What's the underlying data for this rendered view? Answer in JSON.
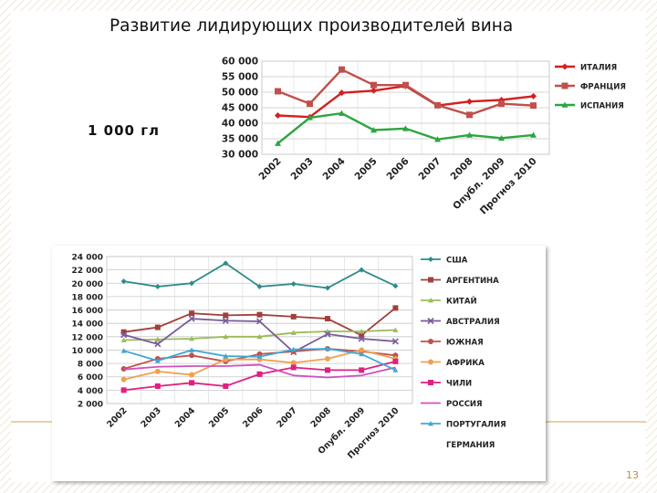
{
  "slide": {
    "title": "Развитие лидирующих производителей вина",
    "unit_label": "1 000 гл",
    "page_number": "13",
    "accent_color": "#d4a04c"
  },
  "chart_data": [
    {
      "type": "line",
      "title": "",
      "categories": [
        "2002",
        "2003",
        "2004",
        "2005",
        "2006",
        "2007",
        "2008",
        "Опубл. 2009",
        "Прогноз 2010"
      ],
      "ylim": [
        30000,
        60000
      ],
      "yticks": [
        "60 000",
        "55 000",
        "50 000",
        "45 000",
        "40 000",
        "35 000",
        "30 000"
      ],
      "ytick_values": [
        60000,
        55000,
        50000,
        45000,
        40000,
        35000,
        30000
      ],
      "grid": true,
      "legend": "right",
      "series": [
        {
          "name": "ИТАЛИЯ",
          "color": "#d42020",
          "marker": "diamond",
          "values": [
            42500,
            42000,
            49800,
            50500,
            52000,
            45700,
            47000,
            47500,
            48700
          ]
        },
        {
          "name": "ФРАНЦИЯ",
          "color": "#c0504d",
          "marker": "square",
          "values": [
            50300,
            46300,
            57300,
            52300,
            52300,
            45800,
            42700,
            46300,
            45700
          ]
        },
        {
          "name": "ИСПАНИЯ",
          "color": "#2ca640",
          "marker": "triangle",
          "values": [
            33500,
            41800,
            43200,
            37800,
            38300,
            34800,
            36200,
            35200,
            36200
          ]
        }
      ]
    },
    {
      "type": "line",
      "title": "",
      "categories": [
        "2002",
        "2003",
        "2004",
        "2005",
        "2006",
        "2007",
        "2008",
        "Опубл. 2009",
        "Прогноз 2010"
      ],
      "ylim": [
        2000,
        24000
      ],
      "yticks": [
        "24 000",
        "22 000",
        "20 000",
        "18 000",
        "16 000",
        "14 000",
        "12 000",
        "10 000",
        "8 000",
        "6 000",
        "4 000",
        "2 000"
      ],
      "ytick_values": [
        24000,
        22000,
        20000,
        18000,
        16000,
        14000,
        12000,
        10000,
        8000,
        6000,
        4000,
        2000
      ],
      "grid": true,
      "legend": "right",
      "series": [
        {
          "name": "США",
          "color": "#2e8b8b",
          "marker": "diamond",
          "values": [
            20300,
            19500,
            20000,
            23000,
            19500,
            19900,
            19300,
            22000,
            19600
          ]
        },
        {
          "name": "АРГЕНТИНА",
          "color": "#a0403c",
          "marker": "square",
          "values": [
            12700,
            13400,
            15500,
            15200,
            15300,
            15000,
            14700,
            12200,
            16300
          ]
        },
        {
          "name": "КИТАЙ",
          "color": "#9bbb59",
          "marker": "triangle",
          "values": [
            11500,
            11600,
            11700,
            12000,
            12000,
            12600,
            12800,
            12800,
            13000
          ]
        },
        {
          "name": "АВСТРАЛИЯ",
          "color": "#7a5c9a",
          "marker": "x",
          "values": [
            12300,
            10900,
            14700,
            14400,
            14300,
            9700,
            12400,
            11700,
            11300
          ]
        },
        {
          "name": "ЮЖНАЯ",
          "color": "#c0504d",
          "marker": "circle",
          "values": [
            7200,
            8700,
            9200,
            8300,
            9400,
            9800,
            10200,
            9800,
            9200
          ]
        },
        {
          "name": "АФРИКА",
          "color": "#f0a050",
          "marker": "circle",
          "values": [
            5600,
            6800,
            6300,
            8600,
            8600,
            8100,
            8700,
            10000,
            8700
          ]
        },
        {
          "name": "ЧИЛИ",
          "color": "#e02080",
          "marker": "square",
          "values": [
            4000,
            4600,
            5100,
            4600,
            6400,
            7400,
            7000,
            7000,
            8300
          ]
        },
        {
          "name": "РОССИЯ",
          "color": "#d050c0",
          "marker": "none",
          "values": [
            7100,
            7500,
            7600,
            7600,
            7800,
            6200,
            5900,
            6200,
            7400
          ]
        },
        {
          "name": "ПОРТУГАЛИЯ",
          "color": "#40a8d8",
          "marker": "triangle",
          "values": [
            9900,
            8400,
            10000,
            9100,
            9000,
            10100,
            10200,
            9400,
            7000
          ]
        }
      ],
      "legend_extra": [
        "ГЕРМАНИЯ"
      ]
    }
  ]
}
